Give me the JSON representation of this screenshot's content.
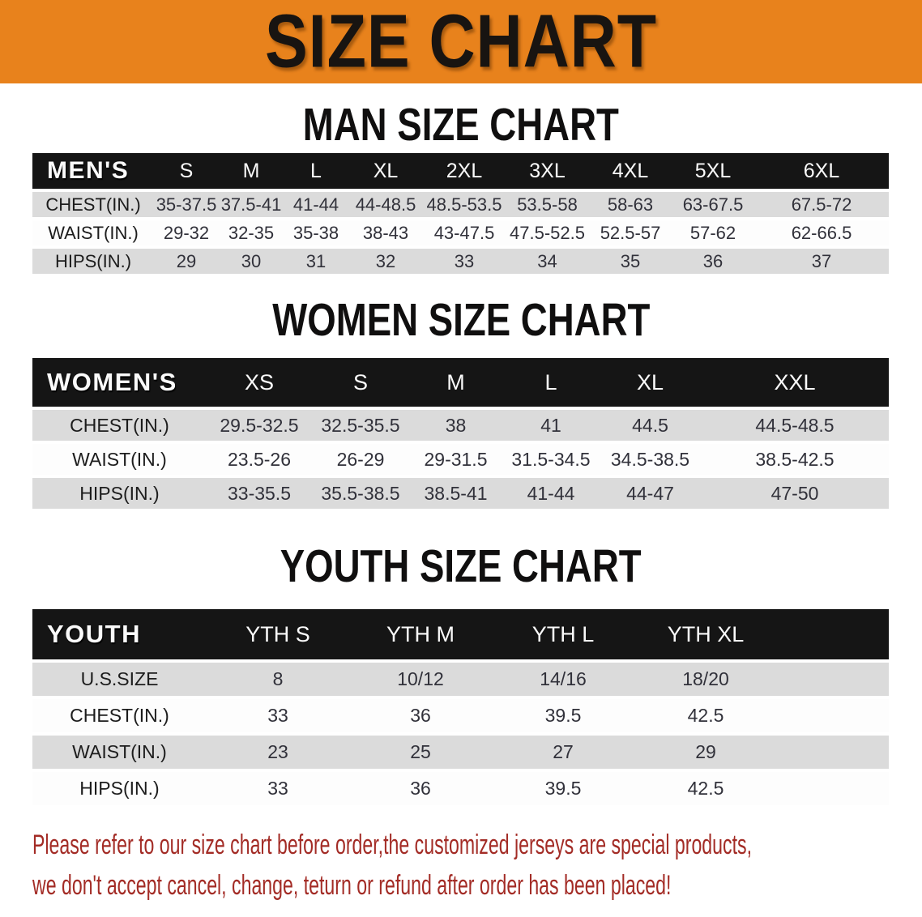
{
  "banner": {
    "title": "SIZE CHART",
    "bg_color": "#E8821C"
  },
  "sections": [
    {
      "name": "men",
      "title": "MAN SIZE CHART",
      "table": {
        "header_label": "MEN'S",
        "columns": [
          "S",
          "M",
          "L",
          "XL",
          "2XL",
          "3XL",
          "4XL",
          "5XL",
          "6XL"
        ],
        "rows": [
          {
            "label": "CHEST(IN.)",
            "values": [
              "35-37.5",
              "37.5-41",
              "41-44",
              "44-48.5",
              "48.5-53.5",
              "53.5-58",
              "58-63",
              "63-67.5",
              "67.5-72"
            ]
          },
          {
            "label": "WAIST(IN.)",
            "values": [
              "29-32",
              "32-35",
              "35-38",
              "38-43",
              "43-47.5",
              "47.5-52.5",
              "52.5-57",
              "57-62",
              "62-66.5"
            ]
          },
          {
            "label": "HIPS(IN.)",
            "values": [
              "29",
              "30",
              "31",
              "32",
              "33",
              "34",
              "35",
              "36",
              "37"
            ]
          }
        ]
      }
    },
    {
      "name": "women",
      "title": "WOMEN SIZE CHART",
      "table": {
        "header_label": "WOMEN'S",
        "columns": [
          "XS",
          "S",
          "M",
          "L",
          "XL",
          "XXL"
        ],
        "rows": [
          {
            "label": "CHEST(IN.)",
            "values": [
              "29.5-32.5",
              "32.5-35.5",
              "38",
              "41",
              "44.5",
              "44.5-48.5"
            ]
          },
          {
            "label": "WAIST(IN.)",
            "values": [
              "23.5-26",
              "26-29",
              "29-31.5",
              "31.5-34.5",
              "34.5-38.5",
              "38.5-42.5"
            ]
          },
          {
            "label": "HIPS(IN.)",
            "values": [
              "33-35.5",
              "35.5-38.5",
              "38.5-41",
              "41-44",
              "44-47",
              "47-50"
            ]
          }
        ]
      }
    },
    {
      "name": "youth",
      "title": "YOUTH SIZE CHART",
      "table": {
        "header_label": "YOUTH",
        "columns": [
          "YTH S",
          "YTH M",
          "YTH L",
          "YTH XL"
        ],
        "rows": [
          {
            "label": "U.S.SIZE",
            "values": [
              "8",
              "10/12",
              "14/16",
              "18/20"
            ]
          },
          {
            "label": "CHEST(IN.)",
            "values": [
              "33",
              "36",
              "39.5",
              "42.5"
            ]
          },
          {
            "label": "WAIST(IN.)",
            "values": [
              "23",
              "25",
              "27",
              "29"
            ]
          },
          {
            "label": "HIPS(IN.)",
            "values": [
              "33",
              "36",
              "39.5",
              "42.5"
            ]
          }
        ]
      }
    }
  ],
  "disclaimer": {
    "line1": "Please refer to our size chart before order,the customized jerseys are special products,",
    "line2": "we don't accept cancel, change, teturn or refund after order has been placed!",
    "color": "#A32C26"
  }
}
